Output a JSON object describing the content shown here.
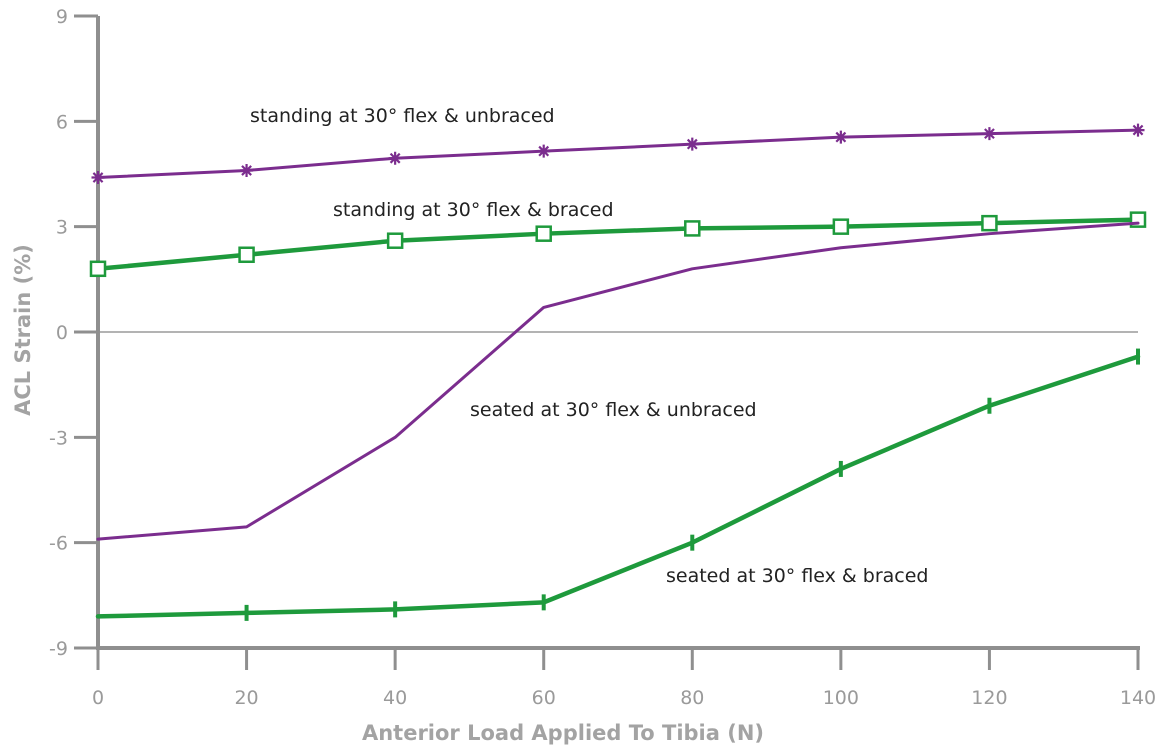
{
  "chart_data": {
    "type": "line",
    "xlabel": "Anterior Load Applied To Tibia (N)",
    "ylabel": "ACL Strain (%)",
    "xlim": [
      0,
      140
    ],
    "ylim": [
      -9,
      9
    ],
    "xticks": [
      "0",
      "20",
      "40",
      "60",
      "80",
      "100",
      "120",
      "140"
    ],
    "yticks": [
      "-9",
      "-6",
      "-3",
      "0",
      "3",
      "6",
      "9"
    ],
    "grid": false,
    "zero_line": true,
    "series": [
      {
        "key": "standing-unbraced",
        "name": "standing at 30° flex & unbraced",
        "color": "#7b2d8e",
        "marker": "asterisk",
        "x": [
          0,
          20,
          40,
          60,
          80,
          100,
          120,
          140
        ],
        "y": [
          4.4,
          4.6,
          4.95,
          5.15,
          5.35,
          5.55,
          5.65,
          5.75
        ]
      },
      {
        "key": "standing-braced",
        "name": "standing at 30° flex & braced",
        "color": "#1e9a3c",
        "marker": "square",
        "x": [
          0,
          20,
          40,
          60,
          80,
          100,
          120,
          140
        ],
        "y": [
          1.8,
          2.2,
          2.6,
          2.8,
          2.95,
          3.0,
          3.1,
          3.2
        ]
      },
      {
        "key": "seated-unbraced",
        "name": "seated at 30° flex & unbraced",
        "color": "#7b2d8e",
        "marker": "none",
        "x": [
          0,
          20,
          40,
          60,
          80,
          100,
          120,
          140
        ],
        "y": [
          -5.9,
          -5.55,
          -3.0,
          0.7,
          1.8,
          2.4,
          2.8,
          3.1
        ]
      },
      {
        "key": "seated-braced",
        "name": "seated at 30° flex & braced",
        "color": "#1e9a3c",
        "marker": "tick",
        "x": [
          0,
          20,
          40,
          60,
          80,
          100,
          120,
          140
        ],
        "y": [
          -8.1,
          -8.0,
          -7.9,
          -7.7,
          -6.0,
          -3.9,
          -2.1,
          -0.7
        ]
      }
    ]
  }
}
